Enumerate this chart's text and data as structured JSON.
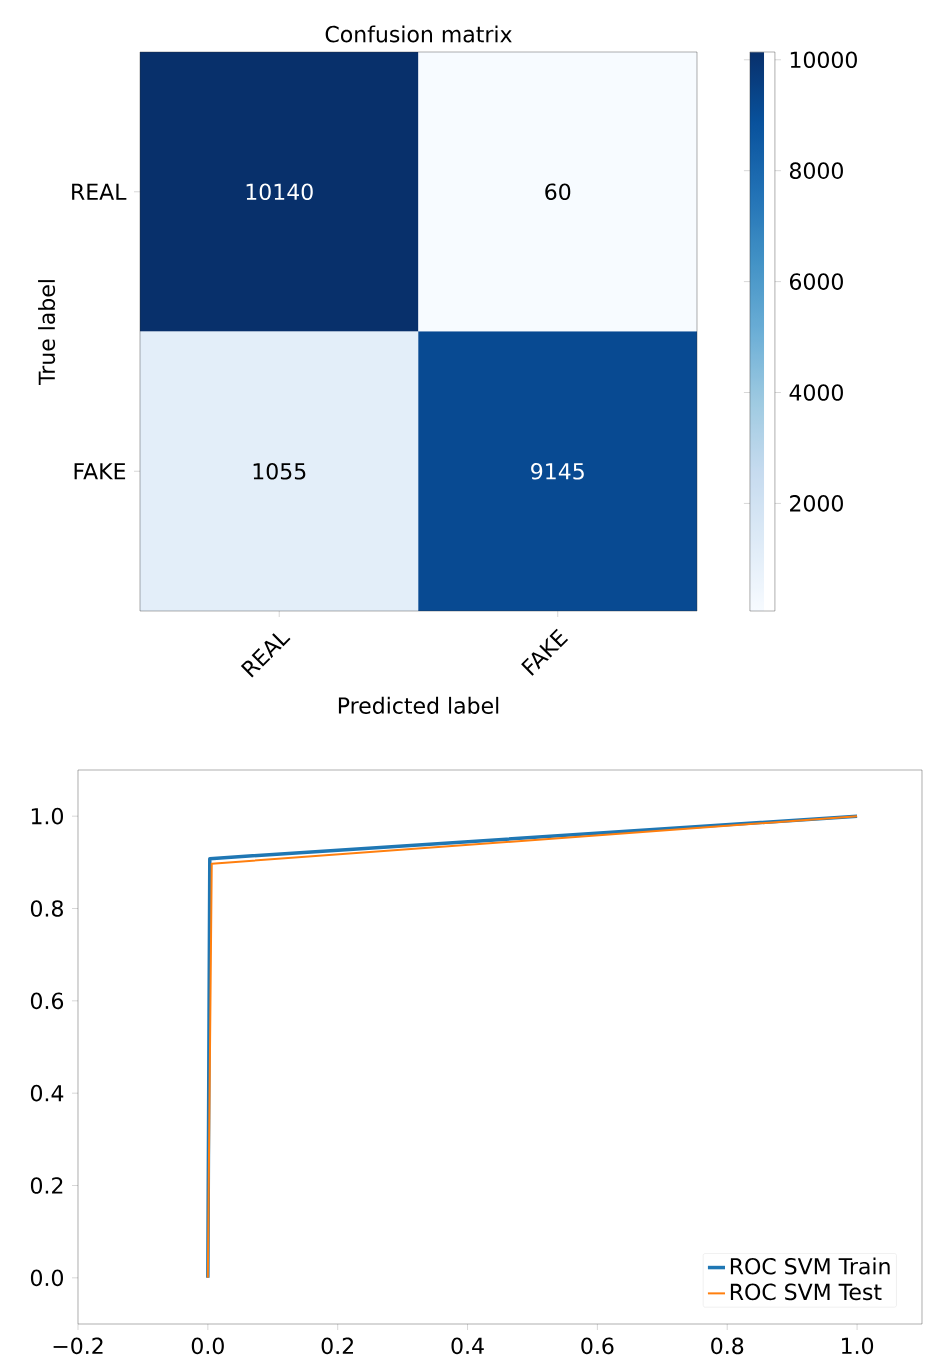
{
  "chart_data": [
    {
      "type": "heatmap",
      "title": "Confusion matrix",
      "xlabel": "Predicted label",
      "ylabel": "True label",
      "categories": [
        "REAL",
        "FAKE"
      ],
      "y_categories": [
        "REAL",
        "FAKE"
      ],
      "cells": [
        [
          10140,
          60
        ],
        [
          1055,
          9145
        ]
      ],
      "clim": [
        60,
        10140
      ],
      "cticks": [
        2000,
        4000,
        6000,
        8000,
        10000
      ],
      "data_labels": true
    },
    {
      "type": "line",
      "xlim": [
        -0.2,
        1.1
      ],
      "ylim": [
        -0.1,
        1.1
      ],
      "xticks": [
        {
          "value": -0.2,
          "label": "−0.2"
        },
        {
          "value": 0,
          "label": "0.0"
        },
        {
          "value": 0.2,
          "label": "0.2"
        },
        {
          "value": 0.4,
          "label": "0.4"
        },
        {
          "value": 0.6,
          "label": "0.6"
        },
        {
          "value": 0.8,
          "label": "0.8"
        },
        {
          "value": 1,
          "label": "1.0"
        }
      ],
      "yticks": [
        {
          "value": 0,
          "label": "0.0"
        },
        {
          "value": 0.2,
          "label": "0.2"
        },
        {
          "value": 0.4,
          "label": "0.4"
        },
        {
          "value": 0.6,
          "label": "0.6"
        },
        {
          "value": 0.8,
          "label": "0.8"
        },
        {
          "value": 1,
          "label": "1.0"
        }
      ],
      "series": [
        {
          "name": "ROC SVM Train",
          "color": "#1f77b4",
          "x": [
            0,
            0.003,
            1
          ],
          "values": [
            0,
            0.908,
            1
          ]
        },
        {
          "name": "ROC SVM Test",
          "color": "#ff7f0e",
          "x": [
            0,
            0.006,
            1
          ],
          "values": [
            0,
            0.897,
            1
          ]
        }
      ],
      "legend": "bottom right",
      "grid": false,
      "marker": "none",
      "line_style": "solid"
    }
  ]
}
